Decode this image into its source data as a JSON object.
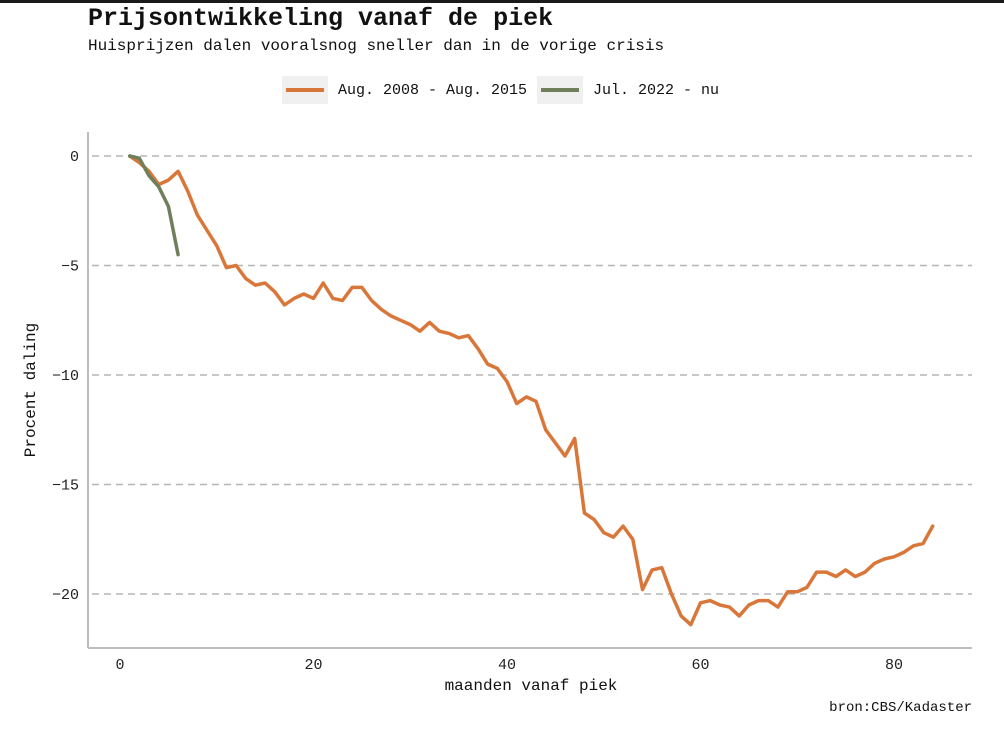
{
  "title": "Prijsontwikkeling vanaf de piek",
  "subtitle": "Huisprijzen dalen vooralsnog sneller dan in de vorige crisis",
  "source": "bron:CBS/Kadaster",
  "chart_data": {
    "type": "line",
    "title": "Prijsontwikkeling vanaf de piek",
    "subtitle": "Huisprijzen dalen vooralsnog sneller dan in de vorige crisis",
    "xlabel": "maanden vanaf piek",
    "ylabel": "Procent daling",
    "xlim": [
      -3,
      88
    ],
    "ylim": [
      -22.5,
      1.0
    ],
    "x_ticks": [
      0,
      20,
      40,
      60,
      80
    ],
    "y_ticks": [
      0,
      -5,
      -10,
      -15,
      -20
    ],
    "grid": "horizontal dashed",
    "legend_position": "top",
    "series": [
      {
        "name": "Aug. 2008 - Aug. 2015",
        "color": "#d9773a",
        "x": [
          1,
          2,
          3,
          4,
          5,
          6,
          7,
          8,
          9,
          10,
          11,
          12,
          13,
          14,
          15,
          16,
          17,
          18,
          19,
          20,
          21,
          22,
          23,
          24,
          25,
          26,
          27,
          28,
          29,
          30,
          31,
          32,
          33,
          34,
          35,
          36,
          37,
          38,
          39,
          40,
          41,
          42,
          43,
          44,
          45,
          46,
          47,
          48,
          49,
          50,
          51,
          52,
          53,
          54,
          55,
          56,
          57,
          58,
          59,
          60,
          61,
          62,
          63,
          64,
          65,
          66,
          67,
          68,
          69,
          70,
          71,
          72,
          73,
          74,
          75,
          76,
          77,
          78,
          79,
          80,
          81,
          82,
          83,
          84
        ],
        "y": [
          0,
          -0.3,
          -0.7,
          -1.3,
          -1.1,
          -0.7,
          -1.6,
          -2.7,
          -3.4,
          -4.1,
          -5.1,
          -5.0,
          -5.6,
          -5.9,
          -5.8,
          -6.2,
          -6.8,
          -6.5,
          -6.3,
          -6.5,
          -5.8,
          -6.5,
          -6.6,
          -6.0,
          -6.0,
          -6.6,
          -7.0,
          -7.3,
          -7.5,
          -7.7,
          -8.0,
          -7.6,
          -8.0,
          -8.1,
          -8.3,
          -8.2,
          -8.8,
          -9.5,
          -9.7,
          -10.3,
          -11.3,
          -11.0,
          -11.2,
          -12.5,
          -13.1,
          -13.7,
          -12.9,
          -16.3,
          -16.6,
          -17.2,
          -17.4,
          -16.9,
          -17.5,
          -19.8,
          -18.9,
          -18.8,
          -20.0,
          -21.0,
          -21.4,
          -20.4,
          -20.3,
          -20.5,
          -20.6,
          -21.0,
          -20.5,
          -20.3,
          -20.3,
          -20.6,
          -19.9,
          -19.9,
          -19.7,
          -19.0,
          -19.0,
          -19.2,
          -18.9,
          -19.2,
          -19.0,
          -18.6,
          -18.4,
          -18.3,
          -18.1,
          -17.8,
          -17.7,
          -16.9
        ]
      },
      {
        "name": "Jul. 2022 - nu",
        "color": "#6f7f5c",
        "x": [
          1,
          2,
          3,
          4,
          5,
          6
        ],
        "y": [
          0,
          -0.1,
          -0.9,
          -1.4,
          -2.3,
          -4.5
        ]
      }
    ]
  }
}
